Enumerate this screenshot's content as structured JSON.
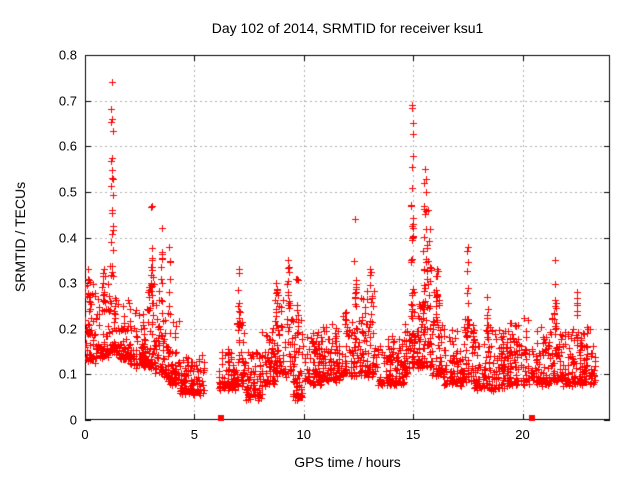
{
  "chart_data": {
    "type": "scatter",
    "title": "Day 102 of 2014, SRMTID for receiver ksu1",
    "xlabel": "GPS time / hours",
    "ylabel": "SRMTID / TECUs",
    "xlim": [
      0,
      24
    ],
    "ylim": [
      0,
      0.8
    ],
    "x_ticks": {
      "values": [
        0,
        5,
        10,
        15,
        20
      ],
      "labels": [
        "0",
        "5",
        "10",
        "15",
        "20"
      ]
    },
    "y_ticks": {
      "values": [
        0,
        0.1,
        0.2,
        0.3,
        0.4,
        0.5,
        0.6,
        0.7,
        0.8
      ],
      "labels": [
        "0",
        "0.1",
        "0.2",
        "0.3",
        "0.4",
        "0.5",
        "0.6",
        "0.7",
        "0.8"
      ]
    },
    "grid": true,
    "legend": "none",
    "marker": "plus",
    "marker_color": "#ff0000",
    "grid_color": "#b0b0b0",
    "border_color": "#000000",
    "background_color": "#ffffff",
    "data_gaps_hours": [
      [
        5.45,
        6.1
      ],
      [
        23.3,
        24
      ]
    ],
    "axis_gap_markers": {
      "marker": "filled-square",
      "y": 0,
      "hours": [
        6.2,
        20.45
      ]
    },
    "notable_points": [
      [
        1.25,
        0.74
      ],
      [
        3.05,
        0.47
      ],
      [
        3.5,
        0.42
      ],
      [
        9.3,
        0.35
      ],
      [
        12.35,
        0.44
      ],
      [
        14.95,
        0.69
      ],
      [
        15.55,
        0.55
      ],
      [
        17.5,
        0.38
      ],
      [
        21.5,
        0.35
      ]
    ],
    "point_cloud_bands": [
      [
        0.0,
        0.5,
        0.13,
        0.3,
        55
      ],
      [
        0.5,
        1.1,
        0.14,
        0.32,
        60
      ],
      [
        1.1,
        1.45,
        0.15,
        0.34,
        40
      ],
      [
        1.45,
        2.1,
        0.13,
        0.26,
        60
      ],
      [
        2.1,
        2.8,
        0.12,
        0.24,
        70
      ],
      [
        2.8,
        3.2,
        0.12,
        0.3,
        45
      ],
      [
        3.2,
        3.7,
        0.1,
        0.28,
        50
      ],
      [
        3.7,
        4.3,
        0.08,
        0.22,
        60
      ],
      [
        4.3,
        5.45,
        0.06,
        0.14,
        110
      ],
      [
        6.1,
        6.9,
        0.07,
        0.16,
        80
      ],
      [
        6.9,
        7.3,
        0.08,
        0.22,
        40
      ],
      [
        7.3,
        8.1,
        0.05,
        0.15,
        75
      ],
      [
        8.1,
        8.7,
        0.08,
        0.2,
        60
      ],
      [
        8.7,
        9.5,
        0.1,
        0.3,
        80
      ],
      [
        9.5,
        10.0,
        0.05,
        0.22,
        55
      ],
      [
        10.0,
        10.8,
        0.08,
        0.2,
        80
      ],
      [
        10.8,
        11.8,
        0.09,
        0.21,
        95
      ],
      [
        11.8,
        12.5,
        0.1,
        0.24,
        70
      ],
      [
        12.5,
        13.3,
        0.1,
        0.28,
        75
      ],
      [
        13.3,
        14.6,
        0.08,
        0.18,
        120
      ],
      [
        14.6,
        14.85,
        0.1,
        0.22,
        25
      ],
      [
        14.85,
        15.25,
        0.12,
        0.3,
        45
      ],
      [
        15.25,
        15.85,
        0.12,
        0.34,
        70
      ],
      [
        15.85,
        16.35,
        0.1,
        0.3,
        50
      ],
      [
        16.35,
        17.3,
        0.08,
        0.2,
        90
      ],
      [
        17.3,
        17.8,
        0.09,
        0.22,
        50
      ],
      [
        17.8,
        19.2,
        0.07,
        0.2,
        130
      ],
      [
        19.2,
        20.35,
        0.08,
        0.22,
        110
      ],
      [
        20.35,
        20.6,
        0.09,
        0.16,
        15
      ],
      [
        20.6,
        21.3,
        0.08,
        0.2,
        70
      ],
      [
        21.3,
        21.8,
        0.09,
        0.24,
        50
      ],
      [
        21.8,
        22.7,
        0.08,
        0.2,
        85
      ],
      [
        22.7,
        23.3,
        0.08,
        0.22,
        60
      ]
    ],
    "spike_columns": [
      [
        0.15,
        0.08,
        0.2,
        0.33,
        8
      ],
      [
        0.85,
        0.06,
        0.22,
        0.33,
        8
      ],
      [
        1.25,
        0.06,
        0.3,
        0.74,
        22
      ],
      [
        3.05,
        0.05,
        0.25,
        0.47,
        14
      ],
      [
        3.5,
        0.05,
        0.22,
        0.42,
        10
      ],
      [
        3.85,
        0.05,
        0.2,
        0.38,
        8
      ],
      [
        7.05,
        0.05,
        0.18,
        0.33,
        10
      ],
      [
        9.3,
        0.06,
        0.2,
        0.35,
        12
      ],
      [
        9.7,
        0.04,
        0.2,
        0.31,
        8
      ],
      [
        12.35,
        0.05,
        0.24,
        0.44,
        12
      ],
      [
        13.05,
        0.06,
        0.2,
        0.33,
        10
      ],
      [
        14.95,
        0.06,
        0.22,
        0.69,
        26
      ],
      [
        15.55,
        0.08,
        0.25,
        0.55,
        18
      ],
      [
        15.7,
        0.06,
        0.22,
        0.46,
        12
      ],
      [
        16.1,
        0.06,
        0.2,
        0.33,
        10
      ],
      [
        17.5,
        0.04,
        0.2,
        0.38,
        12
      ],
      [
        18.4,
        0.05,
        0.18,
        0.27,
        8
      ],
      [
        21.5,
        0.05,
        0.18,
        0.35,
        12
      ],
      [
        22.5,
        0.05,
        0.18,
        0.28,
        8
      ]
    ]
  }
}
